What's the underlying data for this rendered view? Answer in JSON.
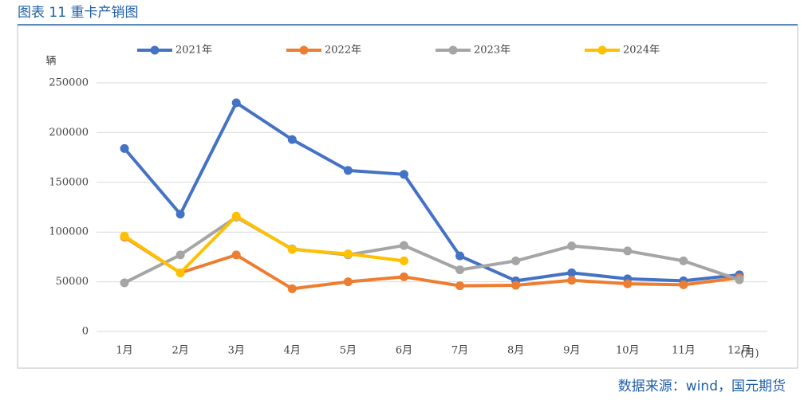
{
  "chart_data": {
    "type": "line",
    "title": "图表 11 重卡产销图",
    "y_label": "辆",
    "x_label": "(月)",
    "source": "数据来源：wind，国元期货",
    "categories": [
      "1月",
      "2月",
      "3月",
      "4月",
      "5月",
      "6月",
      "7月",
      "8月",
      "9月",
      "10月",
      "11月",
      "12月"
    ],
    "series": [
      {
        "name": "2021年",
        "color": "#4472c4",
        "values": [
          184000,
          118000,
          230000,
          193000,
          162000,
          158000,
          76000,
          51000,
          59000,
          53000,
          51000,
          57000
        ]
      },
      {
        "name": "2022年",
        "color": "#ed7d31",
        "values": [
          95000,
          59000,
          77000,
          43000,
          50000,
          55000,
          46000,
          46500,
          51500,
          48000,
          47000,
          54000
        ]
      },
      {
        "name": "2023年",
        "color": "#a5a5a5",
        "values": [
          49000,
          77000,
          115000,
          83000,
          77000,
          86500,
          62000,
          71000,
          86000,
          81000,
          71000,
          52000
        ]
      },
      {
        "name": "2024年",
        "color": "#ffc000",
        "values": [
          96000,
          59000,
          116000,
          82500,
          78000,
          71000,
          null,
          null,
          null,
          null,
          null,
          null
        ]
      }
    ],
    "ylim": [
      0,
      250000
    ],
    "yticks": [
      0,
      50000,
      100000,
      150000,
      200000,
      250000
    ],
    "grid": true,
    "legend": "top"
  }
}
